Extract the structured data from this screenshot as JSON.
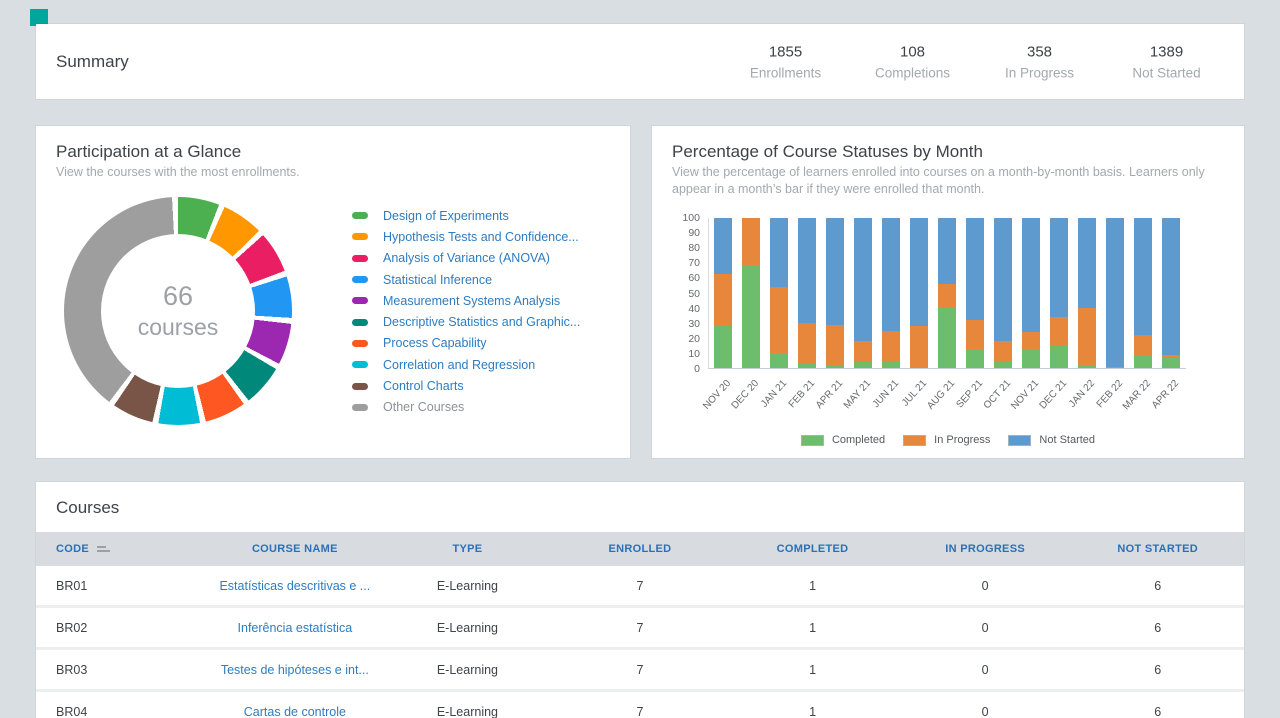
{
  "summary": {
    "title": "Summary",
    "stats": [
      {
        "value": "1855",
        "label": "Enrollments"
      },
      {
        "value": "108",
        "label": "Completions"
      },
      {
        "value": "358",
        "label": "In Progress"
      },
      {
        "value": "1389",
        "label": "Not Started"
      }
    ]
  },
  "participation": {
    "title": "Participation at a Glance",
    "subtitle": "View the courses with the most enrollments."
  },
  "statuses": {
    "title": "Percentage of Course Statuses by Month",
    "subtitle": "View the percentage of learners enrolled into courses on a month-by-month basis. Learners only appear in a month’s bar if they were enrolled that month."
  },
  "chart_data": [
    {
      "type": "donut",
      "title": "Participation at a Glance",
      "center_value": "66",
      "center_label": "courses",
      "legend_position": "right",
      "values_are": "estimated percent share of the ring",
      "segments": [
        {
          "label": "Design of Experiments",
          "color": "#4CAF50",
          "value": 6.4
        },
        {
          "label": "Hypothesis Tests and Confidence...",
          "color": "#FF9800",
          "value": 6.4
        },
        {
          "label": "Analysis of Variance (ANOVA)",
          "color": "#E91E63",
          "value": 6.4
        },
        {
          "label": "Statistical Inference",
          "color": "#2196F3",
          "value": 6.4
        },
        {
          "label": "Measurement Systems Analysis",
          "color": "#9C27B0",
          "value": 6.4
        },
        {
          "label": "Descriptive Statistics and Graphic...",
          "color": "#00897B",
          "value": 6.4
        },
        {
          "label": "Process Capability",
          "color": "#FF5722",
          "value": 6.4
        },
        {
          "label": "Correlation and Regression",
          "color": "#00BCD4",
          "value": 6.4
        },
        {
          "label": "Control Charts",
          "color": "#795548",
          "value": 6.4
        },
        {
          "label": "Other Courses",
          "color": "#9E9E9E",
          "value": 42.4
        }
      ]
    },
    {
      "type": "bar",
      "stacked": true,
      "title": "Percentage of Course Statuses by Month",
      "ylim": [
        0,
        100
      ],
      "ytick_step": 10,
      "legend_position": "bottom",
      "categories": [
        "NOV 20",
        "DEC 20",
        "JAN 21",
        "FEB 21",
        "APR 21",
        "MAY 21",
        "JUN 21",
        "JUL 21",
        "AUG 21",
        "SEP 21",
        "OCT 21",
        "NOV 21",
        "DEC 21",
        "JAN 22",
        "FEB 22",
        "MAR 22",
        "APR 22"
      ],
      "series": [
        {
          "name": "Completed",
          "color": "#6dbd6d",
          "values": [
            28,
            69,
            10,
            3,
            2,
            4,
            4,
            0,
            41,
            12,
            4,
            13,
            15,
            2,
            0,
            8,
            7
          ]
        },
        {
          "name": "In Progress",
          "color": "#e6873b",
          "values": [
            35,
            31,
            44,
            27,
            27,
            14,
            21,
            28,
            15,
            20,
            14,
            11,
            19,
            38,
            1,
            14,
            2
          ]
        },
        {
          "name": "Not Started",
          "color": "#5f9ace",
          "values": [
            37,
            0,
            46,
            70,
            71,
            82,
            75,
            72,
            44,
            68,
            82,
            76,
            66,
            60,
            99,
            78,
            91
          ]
        }
      ]
    }
  ],
  "courses": {
    "title": "Courses",
    "headers": [
      "CODE",
      "COURSE NAME",
      "TYPE",
      "ENROLLED",
      "COMPLETED",
      "IN PROGRESS",
      "NOT STARTED"
    ],
    "rows": [
      [
        "BR01",
        "Estatísticas descritivas e ...",
        "E-Learning",
        "7",
        "1",
        "0",
        "6"
      ],
      [
        "BR02",
        "Inferência estatística",
        "E-Learning",
        "7",
        "1",
        "0",
        "6"
      ],
      [
        "BR03",
        "Testes de hipóteses e int...",
        "E-Learning",
        "7",
        "1",
        "0",
        "6"
      ],
      [
        "BR04",
        "Cartas de controle",
        "E-Learning",
        "7",
        "1",
        "0",
        "6"
      ]
    ]
  },
  "colors": {
    "page_background": "#d9dee2",
    "card_background": "#ffffff",
    "brand_teal": "#00a79d",
    "link_blue": "#2d7cc1",
    "table_header_blue": "#2a6fb8",
    "muted_text": "#a2a9af"
  }
}
